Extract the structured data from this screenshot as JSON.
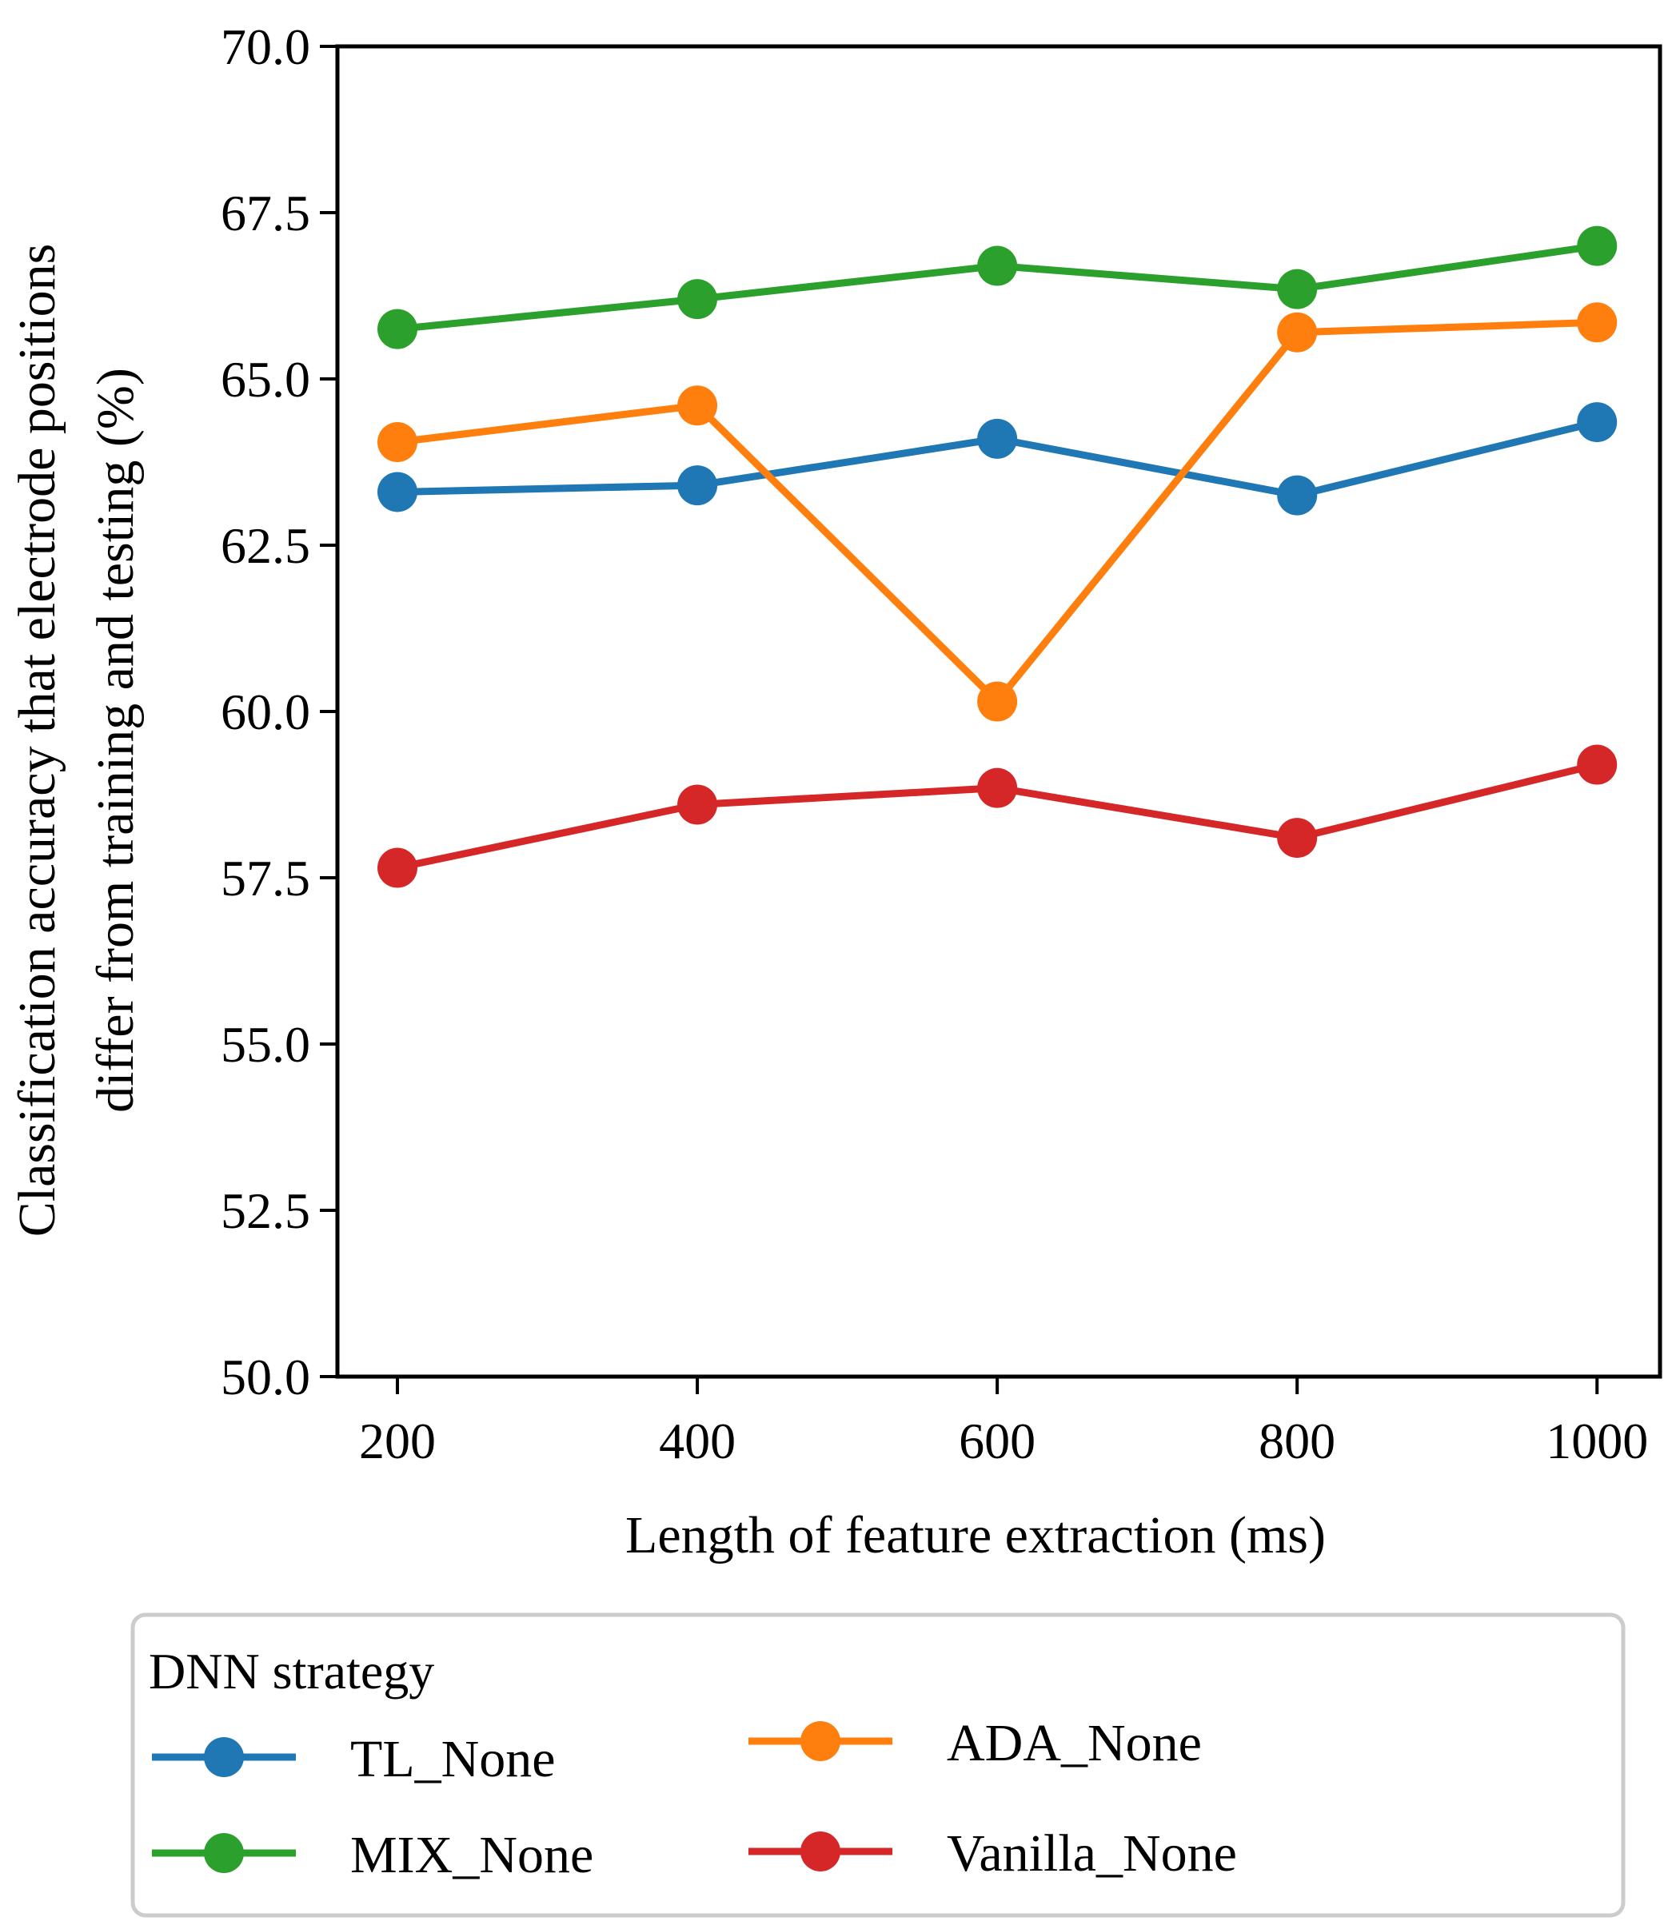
{
  "chart_data": {
    "type": "line",
    "xlabel": "Length of feature extraction (ms)",
    "ylabel_lines": [
      "Classification accuracy that electrode positions",
      "differ from training and testing (%)"
    ],
    "x": [
      200,
      400,
      600,
      800,
      1000
    ],
    "x_ticks": [
      "200",
      "400",
      "600",
      "800",
      "1000"
    ],
    "y_ticks": [
      "50.0",
      "52.5",
      "55.0",
      "57.5",
      "60.0",
      "62.5",
      "65.0",
      "67.5",
      "70.0"
    ],
    "xlim": [
      160,
      1042
    ],
    "ylim": [
      50,
      70
    ],
    "grid": false,
    "legend": {
      "title": "DNN strategy",
      "placement": "below"
    },
    "series": [
      {
        "name": "TL_None",
        "color": "#1f77b4",
        "values": [
          63.3,
          63.4,
          64.1,
          63.25,
          64.35
        ]
      },
      {
        "name": "MIX_None",
        "color": "#2ca02c",
        "values": [
          65.75,
          66.2,
          66.7,
          66.35,
          67.0
        ]
      },
      {
        "name": "ADA_None",
        "color": "#ff7f0e",
        "values": [
          64.05,
          64.6,
          60.15,
          65.7,
          65.85
        ]
      },
      {
        "name": "Vanilla_None",
        "color": "#d62728",
        "values": [
          57.65,
          58.6,
          58.85,
          58.1,
          59.2
        ]
      }
    ]
  }
}
